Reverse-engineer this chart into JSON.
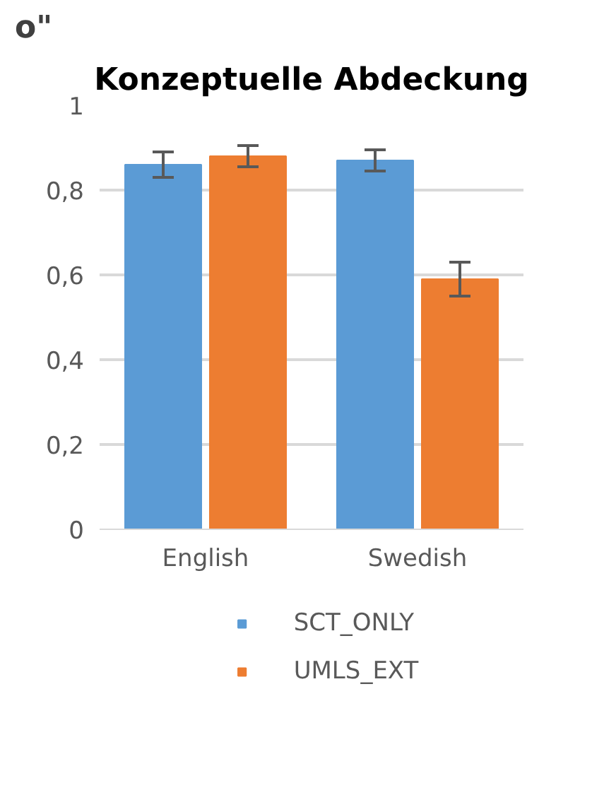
{
  "chart_data": {
    "type": "bar",
    "title": "Konzeptuelle Abdeckung",
    "annotations": [
      "o\""
    ],
    "categories": [
      "English",
      "Swedish"
    ],
    "series": [
      {
        "name": "SCT_ONLY",
        "color": "#5b9bd5",
        "values": [
          0.86,
          0.87
        ],
        "errors": [
          0.03,
          0.025
        ]
      },
      {
        "name": "UMLS_EXT",
        "color": "#ed7d31",
        "values": [
          0.88,
          0.59
        ],
        "errors": [
          0.025,
          0.04
        ]
      }
    ],
    "ylim": [
      0,
      1
    ],
    "yticks": [
      0,
      "0,2",
      "0,4",
      "0,6",
      "0,8",
      1
    ],
    "grid": "y",
    "legend": "bottom"
  }
}
